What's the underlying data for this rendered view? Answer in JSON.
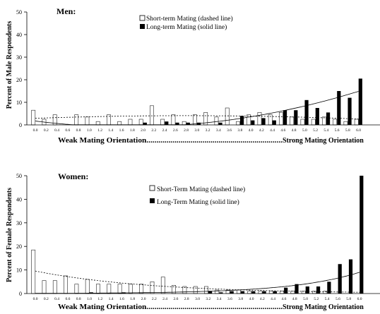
{
  "chart_data": [
    {
      "type": "bar",
      "title": "Men:",
      "ylabel": "Percent of Male Respondents",
      "xlabel_left": "Weak Mating Orientation....................................................................",
      "xlabel_right": "Strong Mating Orientation",
      "ylim": [
        0,
        50
      ],
      "yticks": [
        0,
        10,
        20,
        30,
        40,
        50
      ],
      "legend_position": "top-center",
      "categories": [
        "0.0",
        "0.2",
        "0.4",
        "0.6",
        "0.8",
        "1.0",
        "1.2",
        "1.4",
        "1.6",
        "1.8",
        "2.0",
        "2.2",
        "2.4",
        "2.6",
        "2.8",
        "3.0",
        "3.2",
        "3.4",
        "3.6",
        "3.8",
        "4.0",
        "4.2",
        "4.4",
        "4.6",
        "4.8",
        "5.0",
        "5.2",
        "5.4",
        "5.6",
        "5.8",
        "6.0"
      ],
      "series": [
        {
          "name": "Short-term Mating (dashed line)",
          "style": "open",
          "values": [
            6.5,
            2.5,
            4.5,
            0,
            4.5,
            3.5,
            1.5,
            4.5,
            1.5,
            2.5,
            2.5,
            8.5,
            2.5,
            4.5,
            1.5,
            4.5,
            5.5,
            3.5,
            7.5,
            1.5,
            4.5,
            5.5,
            4.5,
            5.5,
            3.5,
            2.5,
            2.5,
            3.5,
            2.5,
            1.5,
            2.5
          ]
        },
        {
          "name": "Long-term Mating (solid line)",
          "style": "filled",
          "values": [
            0,
            0,
            0,
            0,
            0,
            0,
            0,
            0,
            0,
            0,
            1,
            0,
            1.5,
            1,
            1,
            1,
            0,
            1,
            0,
            4,
            2,
            3,
            2,
            6.5,
            6.5,
            11,
            7.5,
            5.5,
            15,
            12,
            20.5
          ]
        }
      ]
    },
    {
      "type": "bar",
      "title": "Women:",
      "ylabel": "Percent of Female Respondents",
      "xlabel_left": "Weak Mating Orientation....................................................................",
      "xlabel_right": "Strong Mating Orientation",
      "ylim": [
        0,
        50
      ],
      "yticks": [
        0,
        10,
        20,
        30,
        40,
        50
      ],
      "legend_position": "top-center",
      "categories": [
        "0.0",
        "0.2",
        "0.4",
        "0.6",
        "0.8",
        "1.0",
        "1.2",
        "1.4",
        "1.6",
        "1.8",
        "2.0",
        "2.2",
        "2.4",
        "2.6",
        "2.8",
        "3.0",
        "3.2",
        "3.4",
        "3.6",
        "3.8",
        "4.0",
        "4.2",
        "4.4",
        "4.6",
        "4.8",
        "5.0",
        "5.2",
        "5.4",
        "5.6",
        "5.8",
        "6.0"
      ],
      "series": [
        {
          "name": "Short-Term Mating (dashed line)",
          "style": "open",
          "values": [
            18.5,
            5.5,
            5.5,
            7.5,
            4,
            6,
            4,
            4,
            4,
            4,
            4,
            5,
            7,
            3.5,
            3,
            3,
            3,
            1.5,
            1.5,
            1.5,
            1,
            1,
            1,
            1,
            1,
            1,
            1,
            1,
            0,
            0,
            0
          ]
        },
        {
          "name": "Long-Term Mating (solid line)",
          "style": "filled",
          "values": [
            0,
            0,
            0,
            0,
            0,
            0.5,
            0,
            0,
            0.5,
            0,
            0,
            0,
            0,
            0,
            0,
            0,
            1,
            0.5,
            1,
            1,
            1,
            1,
            1,
            2.5,
            4,
            3,
            3,
            5,
            12.5,
            14.5,
            50
          ]
        }
      ]
    }
  ]
}
